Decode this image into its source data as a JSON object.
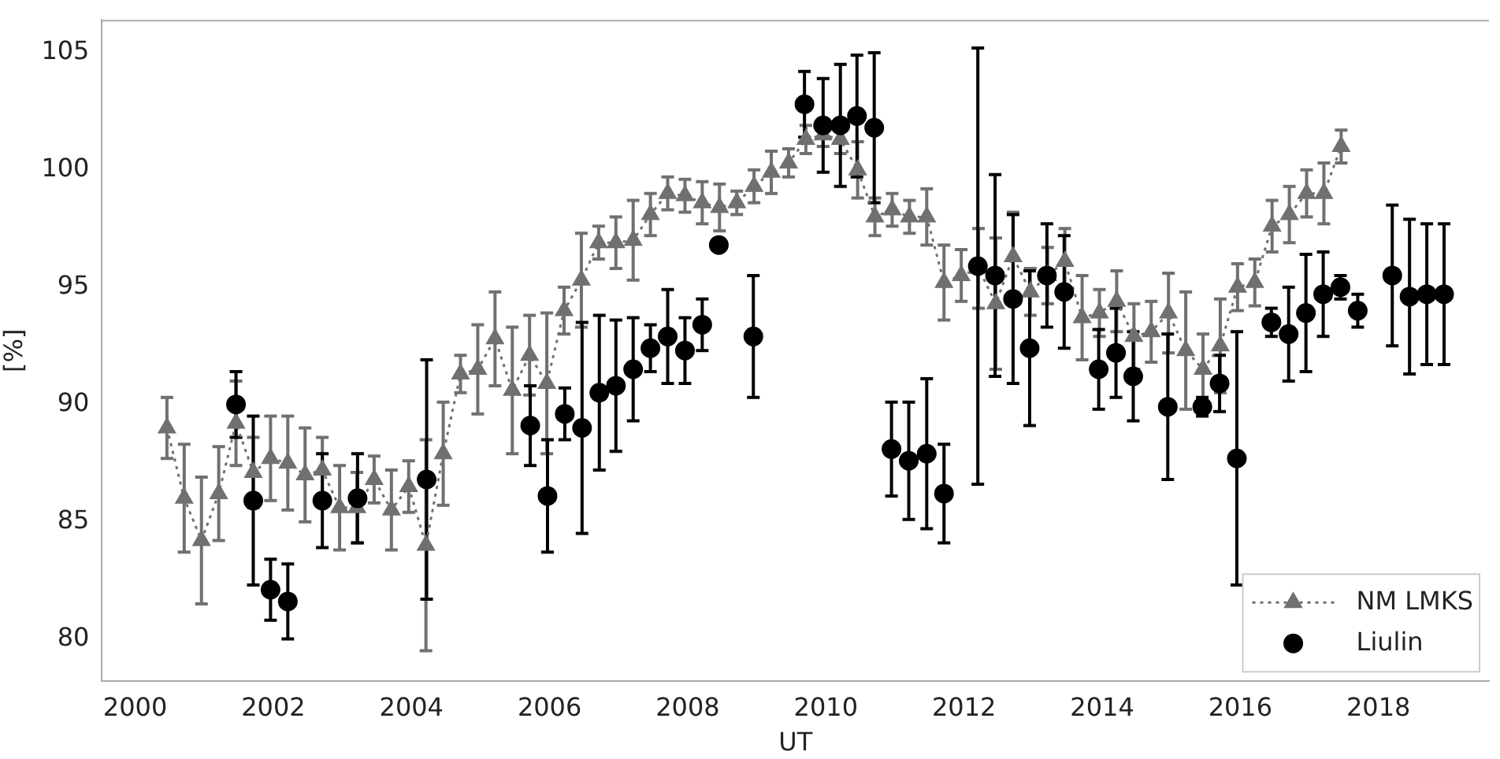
{
  "chart_data": {
    "type": "scatter",
    "xlabel": "UT",
    "ylabel": "[%]",
    "xlim": [
      1999.52,
      2019.6
    ],
    "ylim": [
      78.2,
      106.4
    ],
    "xticks": [
      2000,
      2002,
      2004,
      2006,
      2008,
      2010,
      2012,
      2014,
      2016,
      2018
    ],
    "yticks": [
      80,
      85,
      90,
      95,
      100,
      105
    ],
    "grid": false,
    "legend": "bottom right",
    "series": [
      {
        "name": "NM LMKS",
        "type": "line",
        "color": "#707070",
        "marker": "triangle",
        "line_style": "dotted",
        "x": [
          2000.46,
          2000.71,
          2000.96,
          2001.21,
          2001.46,
          2001.71,
          2001.96,
          2002.21,
          2002.46,
          2002.71,
          2002.96,
          2003.21,
          2003.46,
          2003.71,
          2003.96,
          2004.21,
          2004.46,
          2004.71,
          2004.96,
          2005.21,
          2005.46,
          2005.71,
          2005.96,
          2006.21,
          2006.46,
          2006.71,
          2006.96,
          2007.21,
          2007.46,
          2007.71,
          2007.96,
          2008.21,
          2008.46,
          2008.71,
          2008.96,
          2009.21,
          2009.46,
          2009.71,
          2009.96,
          2010.21,
          2010.46,
          2010.71,
          2010.96,
          2011.21,
          2011.46,
          2011.71,
          2011.96,
          2012.21,
          2012.46,
          2012.71,
          2012.96,
          2013.21,
          2013.46,
          2013.71,
          2013.96,
          2014.21,
          2014.46,
          2014.71,
          2014.96,
          2015.21,
          2015.46,
          2015.71,
          2015.96,
          2016.21,
          2016.46,
          2016.71,
          2016.96,
          2017.21,
          2017.46
        ],
        "values": [
          89.0,
          86.0,
          84.2,
          86.2,
          89.2,
          87.1,
          87.7,
          87.5,
          87.0,
          87.2,
          85.6,
          85.6,
          86.8,
          85.5,
          86.5,
          84.0,
          87.9,
          91.3,
          91.5,
          92.8,
          90.6,
          92.1,
          90.9,
          94.0,
          95.3,
          96.9,
          96.9,
          97.0,
          98.1,
          99.0,
          98.9,
          98.6,
          98.4,
          98.6,
          99.3,
          99.9,
          100.3,
          101.3,
          101.5,
          101.3,
          100.0,
          98.0,
          98.3,
          98.0,
          98.0,
          95.2,
          95.5,
          95.8,
          94.3,
          96.3,
          94.8,
          95.5,
          96.1,
          93.7,
          93.9,
          94.4,
          92.9,
          93.1,
          93.9,
          92.3,
          91.5,
          92.5,
          95.0,
          95.2,
          97.6,
          98.1,
          99.0,
          99.0,
          101.0
        ],
        "errors": [
          1.3,
          2.3,
          2.7,
          2.0,
          1.8,
          1.5,
          1.8,
          2.0,
          2.0,
          1.4,
          1.8,
          1.5,
          1.0,
          1.7,
          1.1,
          4.5,
          2.2,
          0.8,
          1.9,
          2.0,
          2.7,
          1.7,
          3.0,
          1.0,
          2.0,
          0.7,
          1.1,
          1.7,
          0.9,
          0.7,
          0.7,
          0.9,
          1.0,
          0.5,
          0.7,
          0.9,
          0.6,
          0.6,
          0.5,
          0.6,
          1.2,
          0.8,
          0.7,
          0.7,
          1.2,
          1.6,
          1.1,
          1.7,
          2.8,
          1.9,
          1.0,
          1.2,
          1.4,
          1.8,
          1.0,
          1.3,
          1.4,
          1.3,
          1.7,
          2.5,
          1.5,
          2.0,
          1.0,
          1.0,
          1.1,
          1.2,
          1.0,
          1.3,
          0.7
        ]
      },
      {
        "name": "Liulin",
        "type": "scatter",
        "color": "#000000",
        "marker": "circle",
        "x": [
          2001.46,
          2001.71,
          2001.96,
          2002.21,
          2002.71,
          2003.22,
          2004.22,
          2005.72,
          2005.97,
          2006.22,
          2006.47,
          2006.72,
          2006.96,
          2007.21,
          2007.46,
          2007.71,
          2007.96,
          2008.21,
          2008.45,
          2008.95,
          2009.69,
          2009.96,
          2010.21,
          2010.45,
          2010.7,
          2010.95,
          2011.2,
          2011.46,
          2011.71,
          2012.2,
          2012.45,
          2012.71,
          2012.95,
          2013.2,
          2013.45,
          2013.95,
          2014.2,
          2014.45,
          2014.95,
          2015.45,
          2015.7,
          2015.95,
          2016.45,
          2016.7,
          2016.95,
          2017.2,
          2017.45,
          2017.7,
          2018.2,
          2018.45,
          2018.7,
          2018.95
        ],
        "values": [
          90.0,
          85.9,
          82.1,
          81.6,
          85.9,
          86.0,
          86.8,
          89.1,
          86.1,
          89.6,
          89.0,
          90.5,
          90.8,
          91.5,
          92.4,
          92.9,
          92.3,
          93.4,
          96.8,
          92.9,
          102.8,
          101.9,
          101.9,
          102.3,
          101.8,
          88.1,
          87.6,
          87.9,
          86.2,
          95.9,
          95.5,
          94.5,
          92.4,
          95.5,
          94.8,
          91.5,
          92.2,
          91.2,
          89.9,
          89.9,
          90.9,
          87.7,
          93.5,
          93.0,
          93.9,
          94.7,
          95.0,
          94.0,
          95.5,
          94.6,
          94.7,
          94.7
        ],
        "errors": [
          1.4,
          3.6,
          1.3,
          1.6,
          2.0,
          1.9,
          5.1,
          1.7,
          2.4,
          1.1,
          4.5,
          3.3,
          2.8,
          2.2,
          1.0,
          2.0,
          1.4,
          1.1,
          null,
          2.6,
          1.4,
          2.0,
          2.6,
          2.6,
          3.2,
          2.0,
          2.5,
          3.2,
          2.1,
          9.3,
          4.3,
          3.6,
          3.3,
          2.2,
          2.4,
          1.7,
          1.9,
          1.9,
          3.1,
          0.4,
          1.2,
          5.4,
          0.6,
          2.0,
          2.5,
          1.8,
          0.5,
          0.7,
          3.0,
          3.3,
          3.0,
          3.0
        ]
      }
    ]
  }
}
